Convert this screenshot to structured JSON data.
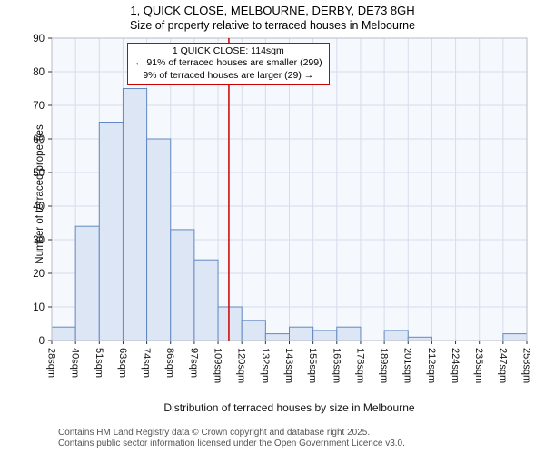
{
  "title": "1, QUICK CLOSE, MELBOURNE, DERBY, DE73 8GH",
  "subtitle": "Size of property relative to terraced houses in Melbourne",
  "annotation": {
    "line1": "1 QUICK CLOSE: 114sqm",
    "line2": "← 91% of terraced houses are smaller (299)",
    "line3": "9% of terraced houses are larger (29) →"
  },
  "footer": {
    "line1": "Contains HM Land Registry data © Crown copyright and database right 2025.",
    "line2": "Contains public sector information licensed under the Open Government Licence v3.0."
  },
  "chart_data": {
    "type": "bar",
    "title": "1, QUICK CLOSE, MELBOURNE, DERBY, DE73 8GH — Size of property relative to terraced houses in Melbourne",
    "xlabel": "Distribution of terraced houses by size in Melbourne",
    "ylabel": "Number of terraced properties",
    "tick_labels": [
      "28sqm",
      "40sqm",
      "51sqm",
      "63sqm",
      "74sqm",
      "86sqm",
      "97sqm",
      "109sqm",
      "120sqm",
      "132sqm",
      "143sqm",
      "155sqm",
      "166sqm",
      "178sqm",
      "189sqm",
      "201sqm",
      "212sqm",
      "224sqm",
      "235sqm",
      "247sqm",
      "258sqm"
    ],
    "bin_edges_sqm": [
      28,
      40,
      51,
      63,
      74,
      86,
      97,
      109,
      120,
      132,
      143,
      155,
      166,
      178,
      189,
      201,
      212,
      224,
      235,
      247,
      258
    ],
    "values": [
      4,
      34,
      65,
      75,
      60,
      33,
      24,
      10,
      6,
      2,
      4,
      3,
      4,
      0,
      3,
      1,
      0,
      0,
      0,
      2
    ],
    "ylim": [
      0,
      90
    ],
    "yticks": [
      0,
      10,
      20,
      30,
      40,
      50,
      60,
      70,
      80,
      90
    ],
    "marker_value_sqm": 114,
    "grid": true,
    "legend": "none",
    "colors": {
      "bar_fill": "#dce6f5",
      "bar_stroke": "#6289c4",
      "marker_line": "#cc0000",
      "grid_line": "#d6ddeb",
      "plot_bg": "#f5f8fd",
      "spine": "#b6bcc9",
      "tick": "#333333",
      "text": "#111111"
    }
  }
}
